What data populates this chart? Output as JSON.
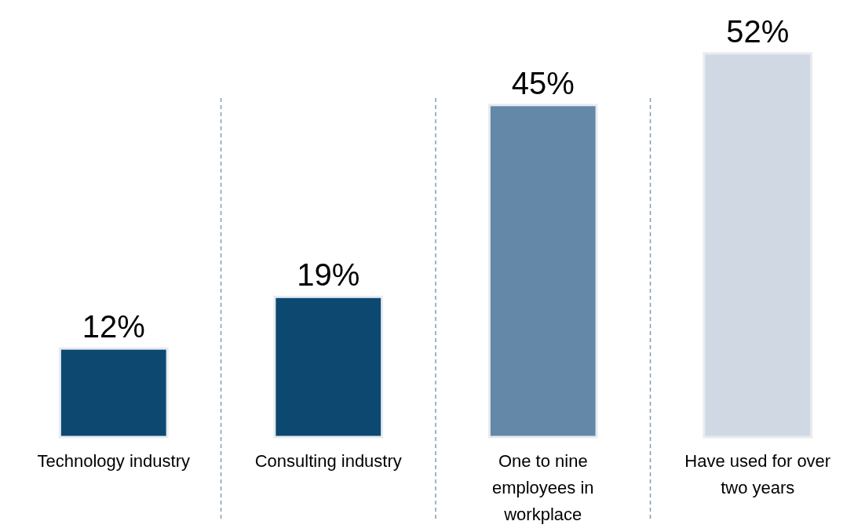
{
  "chart_data": {
    "type": "bar",
    "categories": [
      "Technology industry",
      "Consulting industry",
      "One to nine employees in workplace",
      "Have used for over two years"
    ],
    "values": [
      12,
      19,
      45,
      52
    ],
    "colors": [
      "#0d4870",
      "#0d4870",
      "#6488a8",
      "#d0d9e3"
    ],
    "value_labels": [
      "12%",
      "19%",
      "45%",
      "52%"
    ],
    "tick_labels": "x"
  }
}
